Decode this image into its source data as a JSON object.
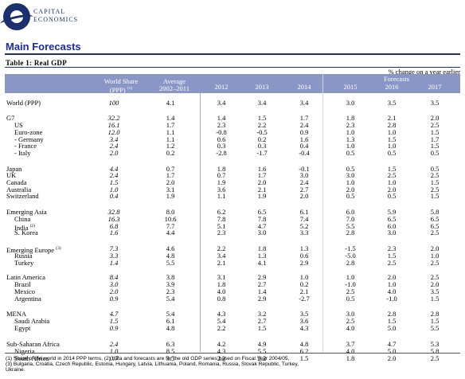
{
  "logo": {
    "line1": "CAPITAL",
    "line2": "ECONOMICS"
  },
  "title": "Main Forecasts",
  "table_title": "Table 1: Real GDP",
  "unit_note": "% change on a year earlier",
  "header": {
    "forecasts": "Forecasts",
    "world_share": "World Share",
    "world_share_sub": "(PPP)",
    "world_share_note": "(1)",
    "average": "Average",
    "average_sub": "2002–2011",
    "years": [
      "2012",
      "2013",
      "2014",
      "2015",
      "2016",
      "2017"
    ]
  },
  "rows": [
    {
      "label": "World (PPP)",
      "share": "100",
      "avg": "4.1",
      "v": [
        "3.4",
        "3.4",
        "3.4",
        "3.0",
        "3.5",
        "3.5"
      ]
    },
    {
      "label": "G7",
      "share": "32.2",
      "avg": "1.4",
      "v": [
        "1.4",
        "1.5",
        "1.7",
        "1.8",
        "2.1",
        "2.0"
      ]
    },
    {
      "label": "US",
      "share": "16.1",
      "avg": "1.7",
      "v": [
        "2.3",
        "2.2",
        "2.4",
        "2.3",
        "2.8",
        "2.5"
      ],
      "indent": 1
    },
    {
      "label": "Euro-zone",
      "share": "12.0",
      "avg": "1.1",
      "v": [
        "-0.8",
        "-0.5",
        "0.9",
        "1.0",
        "1.0",
        "1.5"
      ],
      "indent": 1
    },
    {
      "label": "- Germany",
      "share": "3.4",
      "avg": "1.1",
      "v": [
        "0.6",
        "0.2",
        "1.6",
        "1.3",
        "1.5",
        "1.7"
      ],
      "indent": 1
    },
    {
      "label": "- France",
      "share": "2.4",
      "avg": "1.2",
      "v": [
        "0.3",
        "0.3",
        "0.4",
        "1.0",
        "1.0",
        "1.5"
      ],
      "indent": 1
    },
    {
      "label": "- Italy",
      "share": "2.0",
      "avg": "0.2",
      "v": [
        "-2.8",
        "-1.7",
        "-0.4",
        "0.5",
        "0.5",
        "0.5"
      ],
      "indent": 1
    },
    {
      "label": "Japan",
      "share": "4.4",
      "avg": "0.7",
      "v": [
        "1.8",
        "1.6",
        "-0.1",
        "0.5",
        "1.5",
        "0.5"
      ]
    },
    {
      "label": "UK",
      "share": "2.4",
      "avg": "1.7",
      "v": [
        "0.7",
        "1.7",
        "3.0",
        "3.0",
        "2.5",
        "2.5"
      ]
    },
    {
      "label": "Canada",
      "share": "1.5",
      "avg": "2.0",
      "v": [
        "1.9",
        "2.0",
        "2.4",
        "1.0",
        "1.0",
        "1.5"
      ]
    },
    {
      "label": "Australia",
      "share": "1.0",
      "avg": "3.1",
      "v": [
        "3.6",
        "2.1",
        "2.7",
        "2.0",
        "2.0",
        "2.5"
      ]
    },
    {
      "label": "Switzerland",
      "share": "0.4",
      "avg": "1.9",
      "v": [
        "1.1",
        "1.9",
        "2.0",
        "0.5",
        "0.5",
        "1.5"
      ]
    },
    {
      "label": "Emerging Asia",
      "share": "32.8",
      "avg": "8.0",
      "v": [
        "6.2",
        "6.5",
        "6.1",
        "6.0",
        "5.9",
        "5.8"
      ]
    },
    {
      "label": "China",
      "share": "16.3",
      "avg": "10.6",
      "v": [
        "7.8",
        "7.8",
        "7.4",
        "7.0",
        "6.5",
        "6.5"
      ],
      "indent": 1
    },
    {
      "label": "India",
      "sup": "(2)",
      "share": "6.8",
      "avg": "7.7",
      "v": [
        "5.1",
        "4.7",
        "5.2",
        "5.5",
        "6.0",
        "6.5"
      ],
      "indent": 1
    },
    {
      "label": "S. Korea",
      "share": "1.6",
      "avg": "4.4",
      "v": [
        "2.3",
        "3.0",
        "3.3",
        "2.8",
        "3.0",
        "2.5"
      ],
      "indent": 1
    },
    {
      "label": "Emerging Europe",
      "sup": "(3)",
      "share": "7.3",
      "avg": "4.6",
      "v": [
        "2.2",
        "1.8",
        "1.3",
        "-1.5",
        "2.3",
        "2.0"
      ]
    },
    {
      "label": "Russia",
      "share": "3.3",
      "avg": "4.8",
      "v": [
        "3.4",
        "1.3",
        "0.6",
        "-5.0",
        "1.5",
        "1.0"
      ],
      "indent": 1
    },
    {
      "label": "Turkey",
      "share": "1.4",
      "avg": "5.5",
      "v": [
        "2.1",
        "4.1",
        "2.9",
        "2.8",
        "2.5",
        "2.5"
      ],
      "indent": 1
    },
    {
      "label": "Latin America",
      "share": "8.4",
      "avg": "3.8",
      "v": [
        "3.1",
        "2.9",
        "1.0",
        "1.0",
        "2.0",
        "2.5"
      ]
    },
    {
      "label": "Brazil",
      "share": "3.0",
      "avg": "3.9",
      "v": [
        "1.8",
        "2.7",
        "0.2",
        "-1.0",
        "1.0",
        "2.0"
      ],
      "indent": 1
    },
    {
      "label": "Mexico",
      "share": "2.0",
      "avg": "2.3",
      "v": [
        "4.0",
        "1.4",
        "2.1",
        "2.5",
        "4.0",
        "3.5"
      ],
      "indent": 1
    },
    {
      "label": "Argentina",
      "share": "0.9",
      "avg": "5.4",
      "v": [
        "0.8",
        "2.9",
        "-2.7",
        "0.5",
        "-1.0",
        "1.5"
      ],
      "indent": 1
    },
    {
      "label": "MENA",
      "share": "4.7",
      "avg": "5.4",
      "v": [
        "4.3",
        "3.2",
        "3.5",
        "3.0",
        "2.8",
        "2.8"
      ]
    },
    {
      "label": "Saudi Arabia",
      "share": "1.5",
      "avg": "6.1",
      "v": [
        "5.4",
        "2.7",
        "3.6",
        "2.5",
        "1.5",
        "1.5"
      ],
      "indent": 1
    },
    {
      "label": "Egypt",
      "share": "0.9",
      "avg": "4.8",
      "v": [
        "2.2",
        "1.5",
        "4.3",
        "4.0",
        "5.0",
        "5.5"
      ],
      "indent": 1
    },
    {
      "label": "Sub-Saharan Africa",
      "share": "2.4",
      "avg": "6.3",
      "v": [
        "4.2",
        "4.9",
        "4.8",
        "3.7",
        "4.7",
        "5.3"
      ]
    },
    {
      "label": "Nigeria",
      "share": "1.0",
      "avg": "8.5",
      "v": [
        "4.3",
        "5.5",
        "6.2",
        "4.0",
        "5.0",
        "5.8"
      ],
      "indent": 1
    },
    {
      "label": "South Africa",
      "share": "0.7",
      "avg": "3.5",
      "v": [
        "2.2",
        "2.2",
        "1.5",
        "1.8",
        "2.0",
        "2.5"
      ],
      "indent": 1
    }
  ],
  "footnotes": [
    "(1) Share of the world in 2014 PPP terms, (2) data and forecasts are for the old GDP series based on Fiscal Year 2004/05,",
    "(3) Bulgaria, Croatia, Czech Republic, Estonia, Hungary, Latvia, Lithuania, Poland, Romania, Russia, Slovak Republic, Turkey,",
    "Ukraine."
  ]
}
